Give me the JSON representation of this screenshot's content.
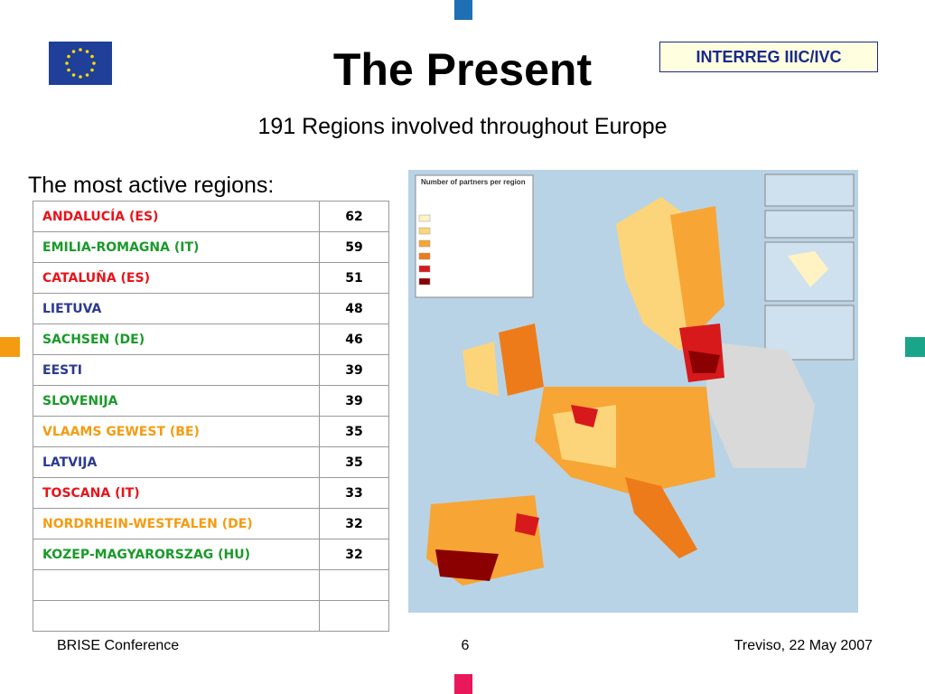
{
  "header": {
    "title": "The Present",
    "subtitle": "191 Regions involved throughout Europe",
    "badge": "INTERREG IIIC/IVC"
  },
  "table": {
    "caption": "The most active regions:",
    "rows": [
      {
        "name": "ANDALUCÍA (ES)",
        "value": "62",
        "color": "#e8141b"
      },
      {
        "name": "EMILIA-ROMAGNA (IT)",
        "value": "59",
        "color": "#1a9a2a"
      },
      {
        "name": "CATALUÑA (ES)",
        "value": "51",
        "color": "#e8141b"
      },
      {
        "name": "LIETUVA",
        "value": "48",
        "color": "#2b3990"
      },
      {
        "name": "SACHSEN (DE)",
        "value": "46",
        "color": "#1a9a2a"
      },
      {
        "name": "EESTI",
        "value": "39",
        "color": "#2b3990"
      },
      {
        "name": "SLOVENIJA",
        "value": "39",
        "color": "#1a9a2a"
      },
      {
        "name": "VLAAMS GEWEST (BE)",
        "value": "35",
        "color": "#f39c12"
      },
      {
        "name": "LATVIJA",
        "value": "35",
        "color": "#2b3990"
      },
      {
        "name": "TOSCANA (IT)",
        "value": "33",
        "color": "#e8141b"
      },
      {
        "name": "NORDRHEIN-WESTFALEN (DE)",
        "value": "32",
        "color": "#f39c12"
      },
      {
        "name": "KOZEP-MAGYARORSZAG (HU)",
        "value": "32",
        "color": "#1a9a2a"
      }
    ]
  },
  "map": {
    "legend_title": "Number of partners per region"
  },
  "footer": {
    "left": "BRISE Conference",
    "page": "6",
    "right": "Treviso, 22 May 2007"
  }
}
